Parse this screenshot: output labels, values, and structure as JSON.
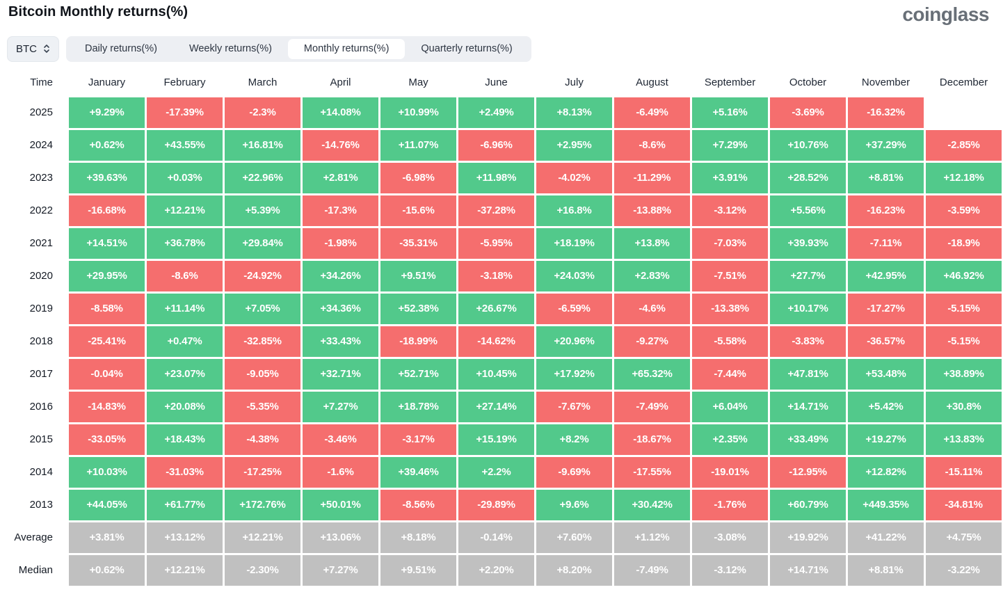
{
  "header": {
    "title": "Bitcoin Monthly returns(%)",
    "logo": "coinglass"
  },
  "controls": {
    "symbol_selector": {
      "value": "BTC",
      "icon": "updown-chevron-icon"
    },
    "tabs": {
      "items": [
        {
          "label": "Daily returns(%)",
          "selected": false
        },
        {
          "label": "Weekly returns(%)",
          "selected": false
        },
        {
          "label": "Monthly returns(%)",
          "selected": true
        },
        {
          "label": "Quarterly returns(%)",
          "selected": false
        }
      ]
    }
  },
  "colors": {
    "positive": "#52c98b",
    "negative": "#f56e6e",
    "stat": "#c0c0c0"
  },
  "table": {
    "time_label": "Time",
    "columns": [
      "January",
      "February",
      "March",
      "April",
      "May",
      "June",
      "July",
      "August",
      "September",
      "October",
      "November",
      "December"
    ],
    "rows": [
      {
        "label": "2025",
        "kind": "year",
        "values": [
          "+9.29%",
          "-17.39%",
          "-2.3%",
          "+14.08%",
          "+10.99%",
          "+2.49%",
          "+8.13%",
          "-6.49%",
          "+5.16%",
          "-3.69%",
          "-16.32%",
          ""
        ]
      },
      {
        "label": "2024",
        "kind": "year",
        "values": [
          "+0.62%",
          "+43.55%",
          "+16.81%",
          "-14.76%",
          "+11.07%",
          "-6.96%",
          "+2.95%",
          "-8.6%",
          "+7.29%",
          "+10.76%",
          "+37.29%",
          "-2.85%"
        ]
      },
      {
        "label": "2023",
        "kind": "year",
        "values": [
          "+39.63%",
          "+0.03%",
          "+22.96%",
          "+2.81%",
          "-6.98%",
          "+11.98%",
          "-4.02%",
          "-11.29%",
          "+3.91%",
          "+28.52%",
          "+8.81%",
          "+12.18%"
        ]
      },
      {
        "label": "2022",
        "kind": "year",
        "values": [
          "-16.68%",
          "+12.21%",
          "+5.39%",
          "-17.3%",
          "-15.6%",
          "-37.28%",
          "+16.8%",
          "-13.88%",
          "-3.12%",
          "+5.56%",
          "-16.23%",
          "-3.59%"
        ]
      },
      {
        "label": "2021",
        "kind": "year",
        "values": [
          "+14.51%",
          "+36.78%",
          "+29.84%",
          "-1.98%",
          "-35.31%",
          "-5.95%",
          "+18.19%",
          "+13.8%",
          "-7.03%",
          "+39.93%",
          "-7.11%",
          "-18.9%"
        ]
      },
      {
        "label": "2020",
        "kind": "year",
        "values": [
          "+29.95%",
          "-8.6%",
          "-24.92%",
          "+34.26%",
          "+9.51%",
          "-3.18%",
          "+24.03%",
          "+2.83%",
          "-7.51%",
          "+27.7%",
          "+42.95%",
          "+46.92%"
        ]
      },
      {
        "label": "2019",
        "kind": "year",
        "values": [
          "-8.58%",
          "+11.14%",
          "+7.05%",
          "+34.36%",
          "+52.38%",
          "+26.67%",
          "-6.59%",
          "-4.6%",
          "-13.38%",
          "+10.17%",
          "-17.27%",
          "-5.15%"
        ]
      },
      {
        "label": "2018",
        "kind": "year",
        "values": [
          "-25.41%",
          "+0.47%",
          "-32.85%",
          "+33.43%",
          "-18.99%",
          "-14.62%",
          "+20.96%",
          "-9.27%",
          "-5.58%",
          "-3.83%",
          "-36.57%",
          "-5.15%"
        ]
      },
      {
        "label": "2017",
        "kind": "year",
        "values": [
          "-0.04%",
          "+23.07%",
          "-9.05%",
          "+32.71%",
          "+52.71%",
          "+10.45%",
          "+17.92%",
          "+65.32%",
          "-7.44%",
          "+47.81%",
          "+53.48%",
          "+38.89%"
        ]
      },
      {
        "label": "2016",
        "kind": "year",
        "values": [
          "-14.83%",
          "+20.08%",
          "-5.35%",
          "+7.27%",
          "+18.78%",
          "+27.14%",
          "-7.67%",
          "-7.49%",
          "+6.04%",
          "+14.71%",
          "+5.42%",
          "+30.8%"
        ]
      },
      {
        "label": "2015",
        "kind": "year",
        "values": [
          "-33.05%",
          "+18.43%",
          "-4.38%",
          "-3.46%",
          "-3.17%",
          "+15.19%",
          "+8.2%",
          "-18.67%",
          "+2.35%",
          "+33.49%",
          "+19.27%",
          "+13.83%"
        ]
      },
      {
        "label": "2014",
        "kind": "year",
        "values": [
          "+10.03%",
          "-31.03%",
          "-17.25%",
          "-1.6%",
          "+39.46%",
          "+2.2%",
          "-9.69%",
          "-17.55%",
          "-19.01%",
          "-12.95%",
          "+12.82%",
          "-15.11%"
        ]
      },
      {
        "label": "2013",
        "kind": "year",
        "values": [
          "+44.05%",
          "+61.77%",
          "+172.76%",
          "+50.01%",
          "-8.56%",
          "-29.89%",
          "+9.6%",
          "+30.42%",
          "-1.76%",
          "+60.79%",
          "+449.35%",
          "-34.81%"
        ]
      },
      {
        "label": "Average",
        "kind": "stat",
        "values": [
          "+3.81%",
          "+13.12%",
          "+12.21%",
          "+13.06%",
          "+8.18%",
          "-0.14%",
          "+7.60%",
          "+1.12%",
          "-3.08%",
          "+19.92%",
          "+41.22%",
          "+4.75%"
        ]
      },
      {
        "label": "Median",
        "kind": "stat",
        "values": [
          "+0.62%",
          "+12.21%",
          "-2.30%",
          "+7.27%",
          "+9.51%",
          "+2.20%",
          "+8.20%",
          "-7.49%",
          "-3.12%",
          "+14.71%",
          "+8.81%",
          "-3.22%"
        ]
      }
    ]
  }
}
